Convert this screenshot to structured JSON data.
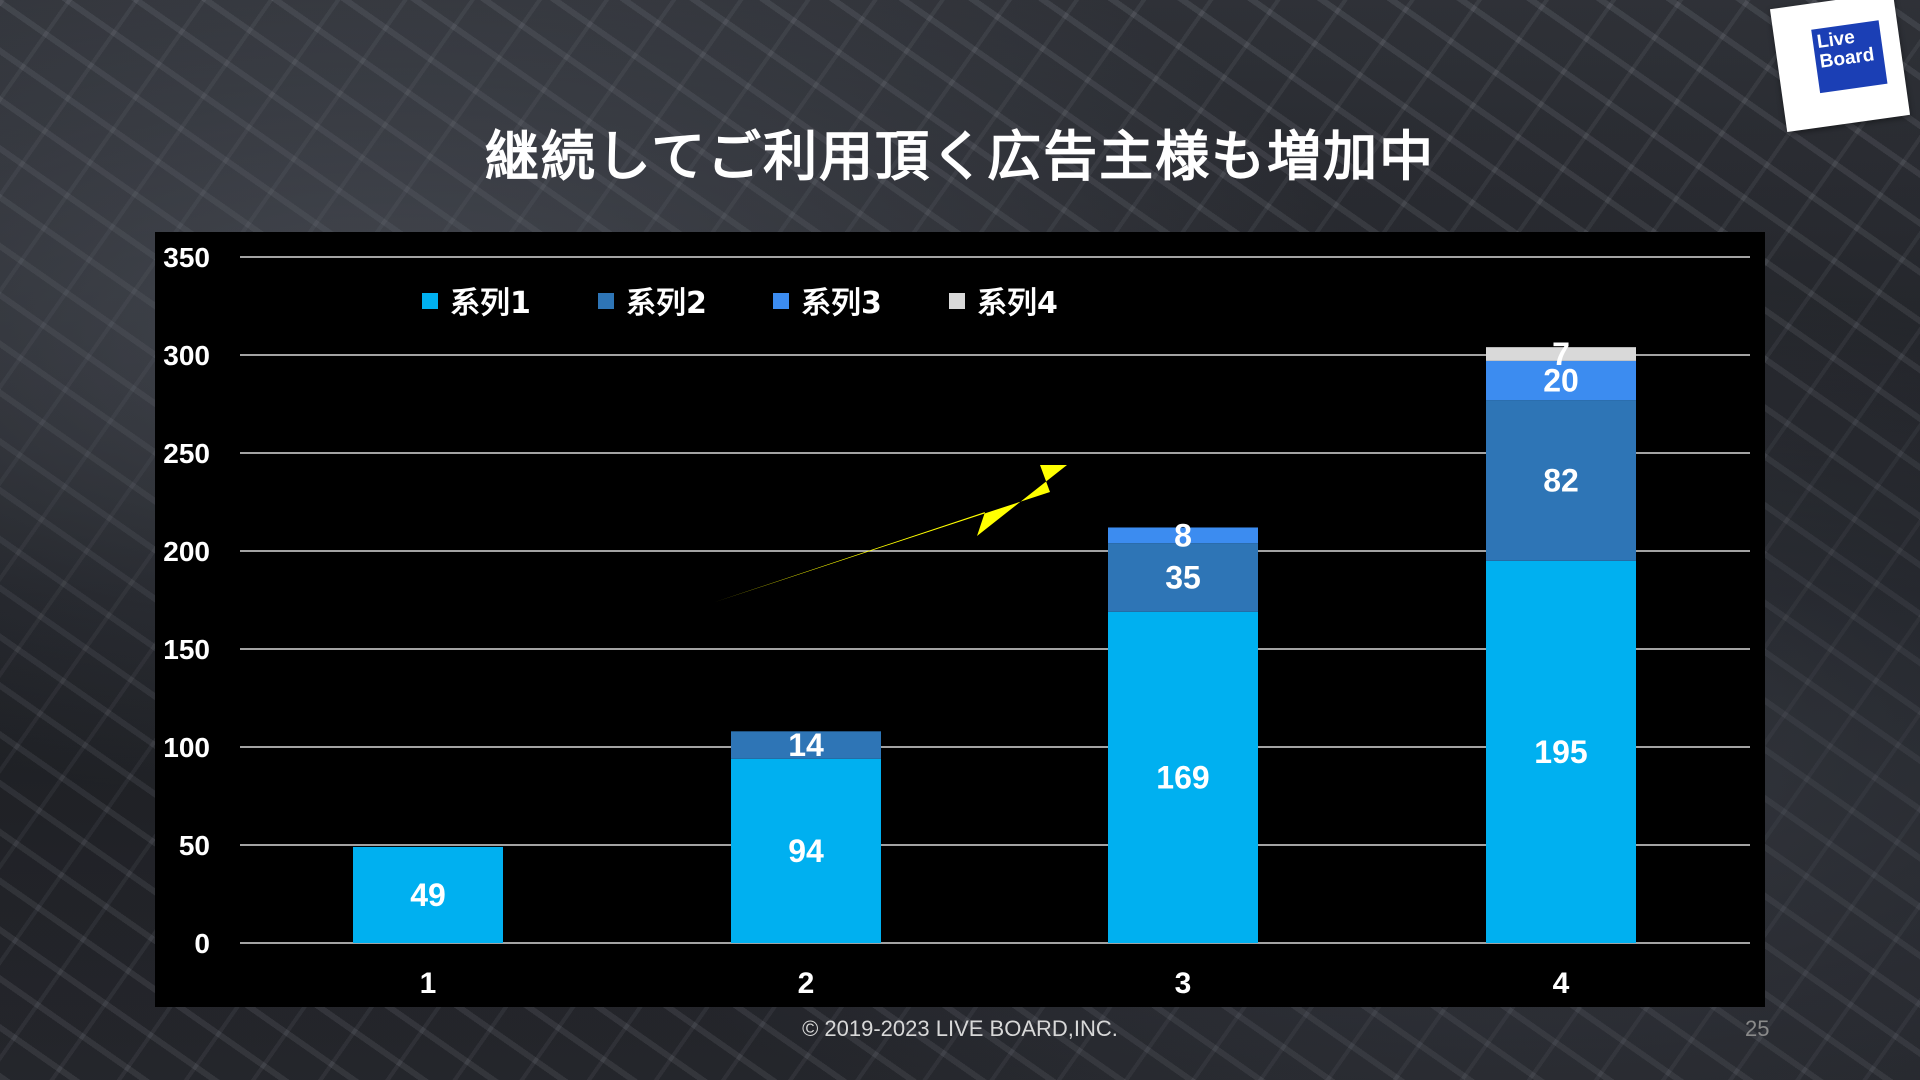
{
  "slide": {
    "title": "継続してご利用頂く広告主様も増加中",
    "logo_text_line1": "Live",
    "logo_text_line2": "Board",
    "copyright": "© 2019-2023 LIVE BOARD,INC.",
    "page_number": "25"
  },
  "colors": {
    "series1": "#00b0f0",
    "series2": "#2e75b6",
    "series3": "#3c8cf0",
    "series4": "#d9d9d9",
    "arrow": "#ffff00",
    "chart_background": "#000000",
    "text": "#ffffff"
  },
  "chart_data": {
    "type": "bar",
    "stacked": true,
    "categories": [
      "1",
      "2",
      "3",
      "4"
    ],
    "series": [
      {
        "name": "系列1",
        "values": [
          49,
          94,
          169,
          195
        ]
      },
      {
        "name": "系列2",
        "values": [
          null,
          14,
          35,
          82
        ]
      },
      {
        "name": "系列3",
        "values": [
          null,
          null,
          8,
          20
        ]
      },
      {
        "name": "系列4",
        "values": [
          null,
          null,
          null,
          7
        ]
      }
    ],
    "ylim": [
      0,
      350
    ],
    "yticks": [
      0,
      50,
      100,
      150,
      200,
      250,
      300,
      350
    ],
    "grid": true,
    "legend": "top-left",
    "title": "",
    "xlabel": "",
    "ylabel": "",
    "annotations": [
      "upward arrow"
    ]
  }
}
